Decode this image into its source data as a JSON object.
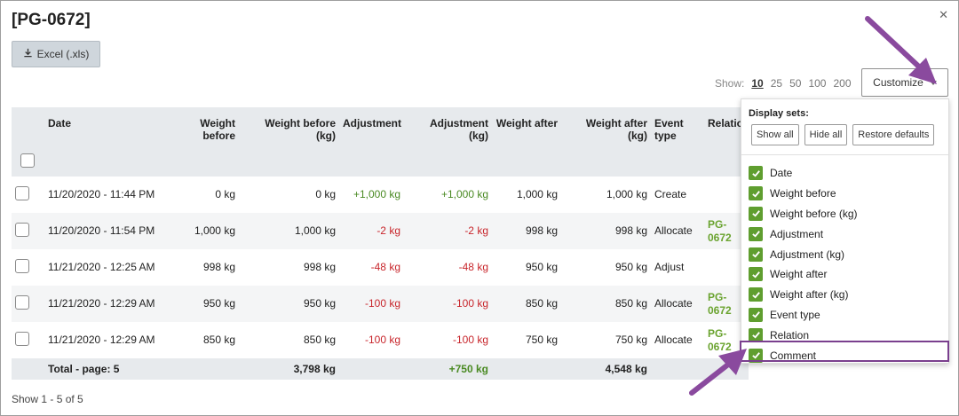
{
  "title": "[PG-0672]",
  "excel_label": "Excel (.xls)",
  "show": {
    "label": "Show:",
    "options": [
      "10",
      "25",
      "50",
      "100",
      "200"
    ]
  },
  "customize_label": "Customize",
  "table": {
    "headers": [
      "Date",
      "Weight before",
      "Weight before (kg)",
      "Adjustment",
      "Adjustment (kg)",
      "Weight after",
      "Weight after (kg)",
      "Event type",
      "Relation"
    ],
    "rows": [
      {
        "date": "11/20/2020 - 11:44 PM",
        "wb": "0 kg",
        "wbkg": "0 kg",
        "adj": "+1,000 kg",
        "adjkg": "+1,000 kg",
        "wa": "1,000 kg",
        "wakg": "1,000 kg",
        "event": "Create",
        "relation": ""
      },
      {
        "date": "11/20/2020 - 11:54 PM",
        "wb": "1,000 kg",
        "wbkg": "1,000 kg",
        "adj": "-2 kg",
        "adjkg": "-2 kg",
        "wa": "998 kg",
        "wakg": "998 kg",
        "event": "Allocate",
        "relation": "PG-0672"
      },
      {
        "date": "11/21/2020 - 12:25 AM",
        "wb": "998 kg",
        "wbkg": "998 kg",
        "adj": "-48 kg",
        "adjkg": "-48 kg",
        "wa": "950 kg",
        "wakg": "950 kg",
        "event": "Adjust",
        "relation": ""
      },
      {
        "date": "11/21/2020 - 12:29 AM",
        "wb": "950 kg",
        "wbkg": "950 kg",
        "adj": "-100 kg",
        "adjkg": "-100 kg",
        "wa": "850 kg",
        "wakg": "850 kg",
        "event": "Allocate",
        "relation": "PG-0672"
      },
      {
        "date": "11/21/2020 - 12:29 AM",
        "wb": "850 kg",
        "wbkg": "850 kg",
        "adj": "-100 kg",
        "adjkg": "-100 kg",
        "wa": "750 kg",
        "wakg": "750 kg",
        "event": "Allocate",
        "relation": "PG-0672"
      }
    ],
    "total": {
      "label": "Total - page: 5",
      "wbkg": "3,798 kg",
      "adjkg": "+750 kg",
      "wakg": "4,548 kg"
    }
  },
  "footer_text": "Show 1 - 5 of 5",
  "customize_panel": {
    "title": "Display sets:",
    "buttons": [
      "Show all",
      "Hide all",
      "Restore defaults"
    ],
    "items": [
      "Date",
      "Weight before",
      "Weight before (kg)",
      "Adjustment",
      "Adjustment (kg)",
      "Weight after",
      "Weight after (kg)",
      "Event type",
      "Relation",
      "Comment"
    ]
  },
  "colors": {
    "accent_green": "#5f9e2f",
    "arrow_purple": "#8a4a9e",
    "positive": "#4a8a23",
    "negative": "#c8262c"
  }
}
